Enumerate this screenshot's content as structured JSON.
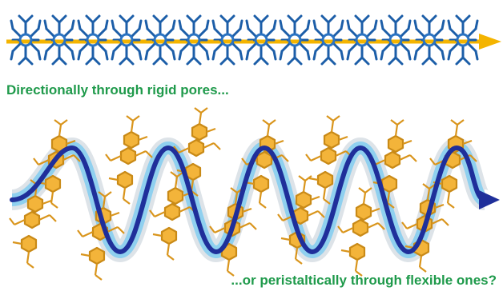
{
  "top_caption": "Directionally through rigid pores...",
  "bottom_caption": "...or peristaltically through flexible ones?"
}
